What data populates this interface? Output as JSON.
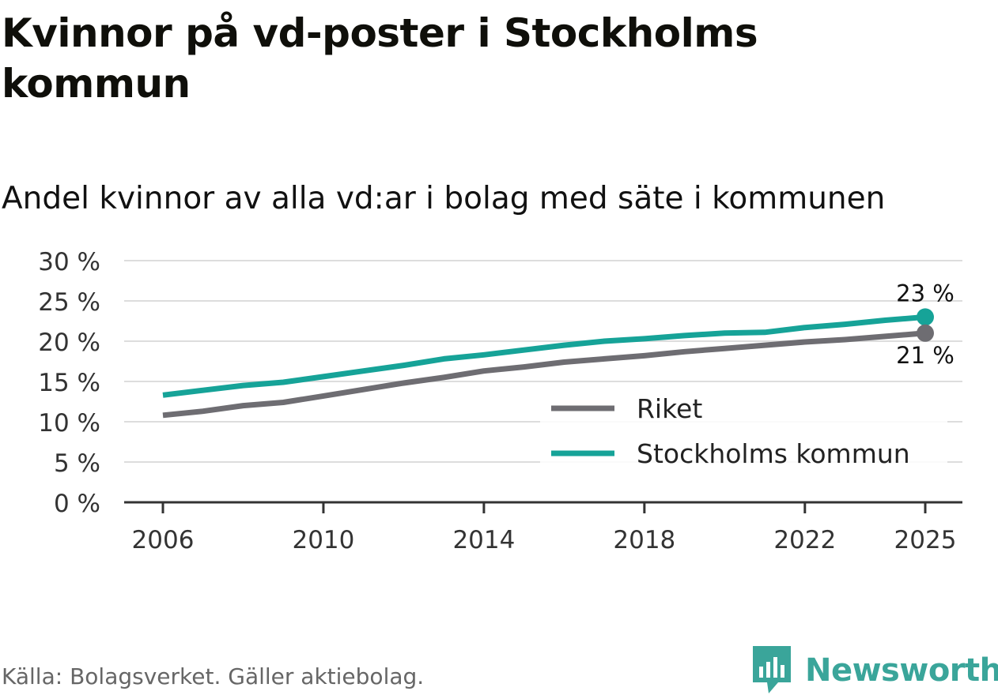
{
  "title": "Kvinnor på vd-poster i Stockholms kommun",
  "subtitle": "Andel kvinnor av alla vd:ar i bolag med säte i kommunen",
  "source": "Källa: Bolagsverket. Gäller aktiebolag.",
  "brand": "Newsworthy",
  "colors": {
    "riket": "#6e6d72",
    "stockholm": "#16a398",
    "grid": "#dddddd",
    "axis": "#333333"
  },
  "chart_data": {
    "type": "line",
    "title": "Kvinnor på vd-poster i Stockholms kommun",
    "subtitle": "Andel kvinnor av alla vd:ar i bolag med säte i kommunen",
    "xlabel": "",
    "ylabel": "",
    "xlim": [
      2005,
      2026
    ],
    "ylim": [
      0,
      30
    ],
    "y_ticks": [
      0,
      5,
      10,
      15,
      20,
      25,
      30
    ],
    "y_tick_labels": [
      "0 %",
      "5 %",
      "10 %",
      "15 %",
      "20 %",
      "25 %",
      "30 %"
    ],
    "x_ticks": [
      2006,
      2010,
      2014,
      2018,
      2022,
      2025
    ],
    "x_tick_labels": [
      "2006",
      "2010",
      "2014",
      "2018",
      "2022",
      "2025"
    ],
    "grid": true,
    "legend_position": "bottom-right",
    "x": [
      2006,
      2007,
      2008,
      2009,
      2010,
      2011,
      2012,
      2013,
      2014,
      2015,
      2016,
      2017,
      2018,
      2019,
      2020,
      2021,
      2022,
      2023,
      2024,
      2025
    ],
    "series": [
      {
        "name": "Riket",
        "color": "#6e6d72",
        "values": [
          10.8,
          11.3,
          12.0,
          12.4,
          13.2,
          14.0,
          14.8,
          15.5,
          16.3,
          16.8,
          17.4,
          17.8,
          18.2,
          18.7,
          19.1,
          19.5,
          19.9,
          20.2,
          20.6,
          21.0
        ],
        "end_label": "21 %"
      },
      {
        "name": "Stockholms kommun",
        "color": "#16a398",
        "values": [
          13.3,
          13.9,
          14.5,
          14.9,
          15.6,
          16.3,
          17.0,
          17.8,
          18.3,
          18.9,
          19.5,
          20.0,
          20.3,
          20.7,
          21.0,
          21.1,
          21.7,
          22.1,
          22.6,
          23.0
        ],
        "end_label": "23 %"
      }
    ]
  }
}
